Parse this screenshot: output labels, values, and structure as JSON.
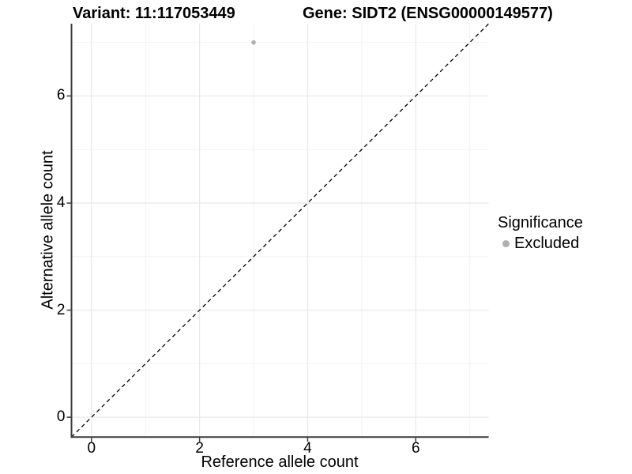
{
  "titles": {
    "variant": "Variant: 11:117053449",
    "gene": "Gene: SIDT2 (ENSG00000149577)"
  },
  "axes": {
    "x_label": "Reference allele count",
    "y_label": "Alternative allele count"
  },
  "legend": {
    "title": "Significance",
    "items": [
      {
        "label": "Excluded",
        "color": "#b0b0b0"
      }
    ]
  },
  "chart_data": {
    "type": "scatter",
    "title": "Variant: 11:117053449 / Gene: SIDT2 (ENSG00000149577)",
    "xlabel": "Reference allele count",
    "ylabel": "Alternative allele count",
    "xlim": [
      -0.37,
      7.35
    ],
    "ylim": [
      -0.37,
      7.35
    ],
    "x_ticks": [
      0,
      2,
      4,
      6
    ],
    "y_ticks": [
      0,
      2,
      4,
      6
    ],
    "x_minor_gridlines": [
      1,
      3,
      5,
      7
    ],
    "y_minor_gridlines": [
      1,
      3,
      5,
      7
    ],
    "grid": "on",
    "legend_position": "right",
    "series": [
      {
        "name": "Excluded",
        "color": "#b0b0b0",
        "points": [
          {
            "x": 3,
            "y": 7
          }
        ]
      }
    ],
    "reference_line": {
      "style": "dashed",
      "slope": 1,
      "intercept": 0,
      "color": "#000000"
    },
    "colors": {
      "grid_major": "#e8e8e8",
      "grid_minor": "#f2f2f2",
      "axis_line": "#3c3c3c",
      "background": "#ffffff"
    }
  }
}
